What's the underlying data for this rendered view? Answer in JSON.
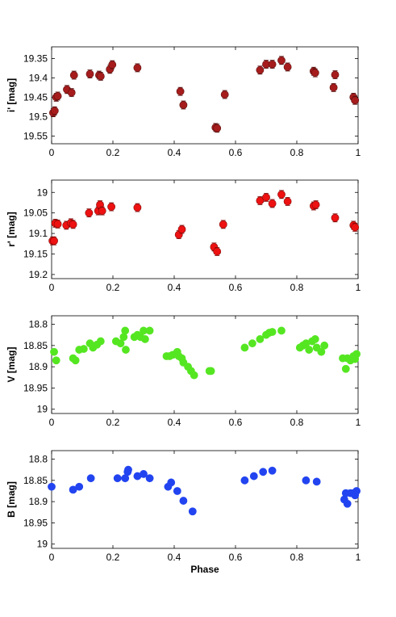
{
  "chart_data": [
    {
      "type": "scatter",
      "panel": "i",
      "ylabel": "i' [mag]",
      "xlabel": "",
      "xlim": [
        0,
        1
      ],
      "ylim": [
        19.57,
        19.32
      ],
      "y_inverted": true,
      "xticks": [
        "0",
        "0.2",
        "0.4",
        "0.6",
        "0.8",
        "1"
      ],
      "yticks": [
        "19.35",
        "19.4",
        "19.45",
        "19.5",
        "19.55"
      ],
      "marker_color": "#A61C1C",
      "errorbars": true,
      "points": [
        {
          "x": 0.005,
          "y": 19.49
        },
        {
          "x": 0.01,
          "y": 19.485
        },
        {
          "x": 0.015,
          "y": 19.45
        },
        {
          "x": 0.02,
          "y": 19.447
        },
        {
          "x": 0.05,
          "y": 19.43
        },
        {
          "x": 0.065,
          "y": 19.438
        },
        {
          "x": 0.073,
          "y": 19.393
        },
        {
          "x": 0.125,
          "y": 19.39
        },
        {
          "x": 0.155,
          "y": 19.393
        },
        {
          "x": 0.16,
          "y": 19.396
        },
        {
          "x": 0.19,
          "y": 19.378
        },
        {
          "x": 0.198,
          "y": 19.366
        },
        {
          "x": 0.28,
          "y": 19.374
        },
        {
          "x": 0.42,
          "y": 19.435
        },
        {
          "x": 0.43,
          "y": 19.47
        },
        {
          "x": 0.535,
          "y": 19.528
        },
        {
          "x": 0.54,
          "y": 19.53
        },
        {
          "x": 0.565,
          "y": 19.443
        },
        {
          "x": 0.68,
          "y": 19.38
        },
        {
          "x": 0.7,
          "y": 19.365
        },
        {
          "x": 0.72,
          "y": 19.365
        },
        {
          "x": 0.75,
          "y": 19.355
        },
        {
          "x": 0.77,
          "y": 19.372
        },
        {
          "x": 0.855,
          "y": 19.383
        },
        {
          "x": 0.86,
          "y": 19.387
        },
        {
          "x": 0.92,
          "y": 19.425
        },
        {
          "x": 0.925,
          "y": 19.392
        },
        {
          "x": 0.985,
          "y": 19.45
        },
        {
          "x": 0.99,
          "y": 19.458
        }
      ]
    },
    {
      "type": "scatter",
      "panel": "r",
      "ylabel": "r' [mag]",
      "xlabel": "",
      "xlim": [
        0,
        1
      ],
      "ylim": [
        19.21,
        18.97
      ],
      "y_inverted": true,
      "xticks": [
        "0",
        "0.2",
        "0.4",
        "0.6",
        "0.8",
        "1"
      ],
      "yticks": [
        "19",
        "19.05",
        "19.1",
        "19.15",
        "19.2"
      ],
      "marker_color": "#EE1111",
      "errorbars": true,
      "points": [
        {
          "x": 0.003,
          "y": 19.118
        },
        {
          "x": 0.008,
          "y": 19.118
        },
        {
          "x": 0.012,
          "y": 19.075
        },
        {
          "x": 0.02,
          "y": 19.077
        },
        {
          "x": 0.048,
          "y": 19.08
        },
        {
          "x": 0.063,
          "y": 19.074
        },
        {
          "x": 0.07,
          "y": 19.078
        },
        {
          "x": 0.122,
          "y": 19.05
        },
        {
          "x": 0.152,
          "y": 19.045
        },
        {
          "x": 0.158,
          "y": 19.03
        },
        {
          "x": 0.165,
          "y": 19.045
        },
        {
          "x": 0.195,
          "y": 19.035
        },
        {
          "x": 0.28,
          "y": 19.037
        },
        {
          "x": 0.415,
          "y": 19.103
        },
        {
          "x": 0.425,
          "y": 19.09
        },
        {
          "x": 0.53,
          "y": 19.133
        },
        {
          "x": 0.54,
          "y": 19.144
        },
        {
          "x": 0.56,
          "y": 19.078
        },
        {
          "x": 0.68,
          "y": 19.02
        },
        {
          "x": 0.7,
          "y": 19.012
        },
        {
          "x": 0.72,
          "y": 19.027
        },
        {
          "x": 0.75,
          "y": 19.005
        },
        {
          "x": 0.77,
          "y": 19.022
        },
        {
          "x": 0.855,
          "y": 19.033
        },
        {
          "x": 0.862,
          "y": 19.03
        },
        {
          "x": 0.925,
          "y": 19.062
        },
        {
          "x": 0.985,
          "y": 19.08
        },
        {
          "x": 0.99,
          "y": 19.085
        }
      ]
    },
    {
      "type": "scatter",
      "panel": "V",
      "ylabel": "V [mag]",
      "xlabel": "",
      "xlim": [
        0,
        1
      ],
      "ylim": [
        19.01,
        18.78
      ],
      "y_inverted": true,
      "xticks": [
        "0",
        "0.2",
        "0.4",
        "0.6",
        "0.8",
        "1"
      ],
      "yticks": [
        "18.8",
        "18.85",
        "18.9",
        "18.95",
        "19"
      ],
      "marker_color": "#55E622",
      "errorbars": false,
      "points": [
        {
          "x": 0.008,
          "y": 18.865
        },
        {
          "x": 0.015,
          "y": 18.885
        },
        {
          "x": 0.07,
          "y": 18.88
        },
        {
          "x": 0.078,
          "y": 18.885
        },
        {
          "x": 0.09,
          "y": 18.86
        },
        {
          "x": 0.105,
          "y": 18.858
        },
        {
          "x": 0.125,
          "y": 18.845
        },
        {
          "x": 0.135,
          "y": 18.855
        },
        {
          "x": 0.148,
          "y": 18.848
        },
        {
          "x": 0.16,
          "y": 18.84
        },
        {
          "x": 0.21,
          "y": 18.84
        },
        {
          "x": 0.225,
          "y": 18.845
        },
        {
          "x": 0.235,
          "y": 18.83
        },
        {
          "x": 0.24,
          "y": 18.815
        },
        {
          "x": 0.242,
          "y": 18.86
        },
        {
          "x": 0.27,
          "y": 18.83
        },
        {
          "x": 0.28,
          "y": 18.825
        },
        {
          "x": 0.29,
          "y": 18.83
        },
        {
          "x": 0.3,
          "y": 18.815
        },
        {
          "x": 0.305,
          "y": 18.835
        },
        {
          "x": 0.32,
          "y": 18.815
        },
        {
          "x": 0.375,
          "y": 18.875
        },
        {
          "x": 0.385,
          "y": 18.875
        },
        {
          "x": 0.395,
          "y": 18.872
        },
        {
          "x": 0.41,
          "y": 18.865
        },
        {
          "x": 0.415,
          "y": 18.875
        },
        {
          "x": 0.425,
          "y": 18.88
        },
        {
          "x": 0.43,
          "y": 18.89
        },
        {
          "x": 0.445,
          "y": 18.9
        },
        {
          "x": 0.455,
          "y": 18.91
        },
        {
          "x": 0.465,
          "y": 18.92
        },
        {
          "x": 0.515,
          "y": 18.91
        },
        {
          "x": 0.52,
          "y": 18.91
        },
        {
          "x": 0.63,
          "y": 18.855
        },
        {
          "x": 0.655,
          "y": 18.845
        },
        {
          "x": 0.68,
          "y": 18.835
        },
        {
          "x": 0.7,
          "y": 18.825
        },
        {
          "x": 0.71,
          "y": 18.82
        },
        {
          "x": 0.72,
          "y": 18.818
        },
        {
          "x": 0.75,
          "y": 18.815
        },
        {
          "x": 0.81,
          "y": 18.855
        },
        {
          "x": 0.82,
          "y": 18.85
        },
        {
          "x": 0.83,
          "y": 18.845
        },
        {
          "x": 0.84,
          "y": 18.86
        },
        {
          "x": 0.85,
          "y": 18.84
        },
        {
          "x": 0.86,
          "y": 18.835
        },
        {
          "x": 0.865,
          "y": 18.855
        },
        {
          "x": 0.88,
          "y": 18.865
        },
        {
          "x": 0.89,
          "y": 18.85
        },
        {
          "x": 0.95,
          "y": 18.88
        },
        {
          "x": 0.96,
          "y": 18.905
        },
        {
          "x": 0.965,
          "y": 18.88
        },
        {
          "x": 0.975,
          "y": 18.885
        },
        {
          "x": 0.985,
          "y": 18.875
        },
        {
          "x": 0.99,
          "y": 18.882
        },
        {
          "x": 0.995,
          "y": 18.87
        }
      ]
    },
    {
      "type": "scatter",
      "panel": "B",
      "ylabel": "B [mag]",
      "xlabel": "Phase",
      "xlim": [
        0,
        1
      ],
      "ylim": [
        19.01,
        18.78
      ],
      "y_inverted": true,
      "xticks": [
        "0",
        "0.2",
        "0.4",
        "0.6",
        "0.8",
        "1"
      ],
      "yticks": [
        "18.8",
        "18.85",
        "18.9",
        "18.95",
        "19"
      ],
      "marker_color": "#2244F0",
      "errorbars": false,
      "points": [
        {
          "x": 0.0,
          "y": 18.865
        },
        {
          "x": 0.07,
          "y": 18.872
        },
        {
          "x": 0.09,
          "y": 18.865
        },
        {
          "x": 0.128,
          "y": 18.845
        },
        {
          "x": 0.215,
          "y": 18.845
        },
        {
          "x": 0.24,
          "y": 18.845
        },
        {
          "x": 0.248,
          "y": 18.83
        },
        {
          "x": 0.25,
          "y": 18.825
        },
        {
          "x": 0.28,
          "y": 18.84
        },
        {
          "x": 0.3,
          "y": 18.835
        },
        {
          "x": 0.32,
          "y": 18.845
        },
        {
          "x": 0.38,
          "y": 18.865
        },
        {
          "x": 0.39,
          "y": 18.855
        },
        {
          "x": 0.41,
          "y": 18.875
        },
        {
          "x": 0.43,
          "y": 18.898
        },
        {
          "x": 0.46,
          "y": 18.923
        },
        {
          "x": 0.63,
          "y": 18.85
        },
        {
          "x": 0.66,
          "y": 18.84
        },
        {
          "x": 0.69,
          "y": 18.83
        },
        {
          "x": 0.72,
          "y": 18.827
        },
        {
          "x": 0.83,
          "y": 18.85
        },
        {
          "x": 0.865,
          "y": 18.853
        },
        {
          "x": 0.955,
          "y": 18.895
        },
        {
          "x": 0.96,
          "y": 18.88
        },
        {
          "x": 0.965,
          "y": 18.905
        },
        {
          "x": 0.975,
          "y": 18.88
        },
        {
          "x": 0.985,
          "y": 18.88
        },
        {
          "x": 0.99,
          "y": 18.885
        },
        {
          "x": 0.995,
          "y": 18.875
        }
      ]
    }
  ]
}
